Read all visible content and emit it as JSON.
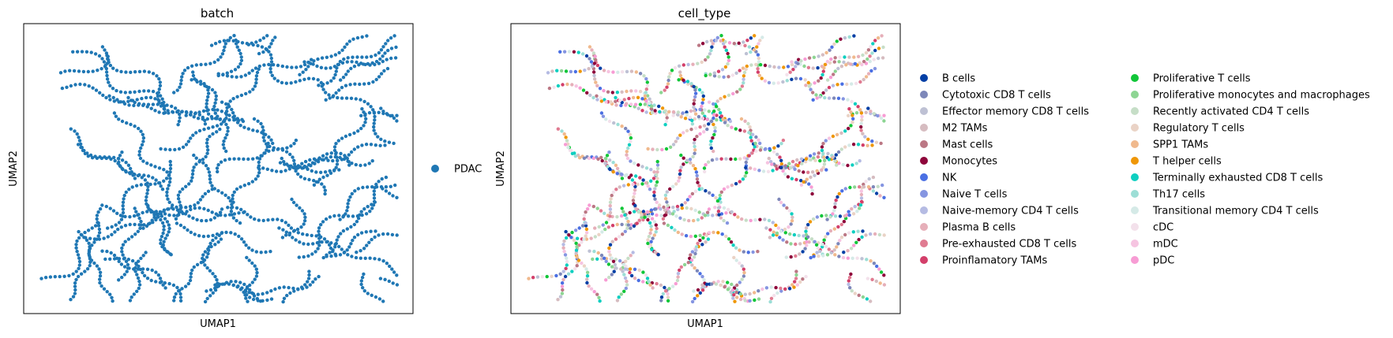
{
  "chart_data": [
    {
      "type": "scatter",
      "title": "batch",
      "xlabel": "UMAP1",
      "ylabel": "UMAP2",
      "grid": false,
      "legend_position": "right",
      "series": [
        {
          "name": "PDAC",
          "color": "#1f77b4"
        }
      ]
    },
    {
      "type": "scatter",
      "title": "cell_type",
      "xlabel": "UMAP1",
      "ylabel": "UMAP2",
      "grid": false,
      "legend_position": "right",
      "series": [
        {
          "name": "B cells",
          "color": "#023fa5"
        },
        {
          "name": "Cytotoxic CD8 T cells",
          "color": "#7d87b9"
        },
        {
          "name": "Effector memory CD8 T cells",
          "color": "#bec1d4"
        },
        {
          "name": "M2 TAMs",
          "color": "#d6bcc0"
        },
        {
          "name": "Mast cells",
          "color": "#bb7784"
        },
        {
          "name": "Monocytes",
          "color": "#8e063b"
        },
        {
          "name": "NK",
          "color": "#4a6fe3"
        },
        {
          "name": "Naive T cells",
          "color": "#8595e1"
        },
        {
          "name": "Naive-memory CD4 T cells",
          "color": "#b5bbe3"
        },
        {
          "name": "Plasma B cells",
          "color": "#e6afb9"
        },
        {
          "name": "Pre-exhausted CD8 T cells",
          "color": "#e07b91"
        },
        {
          "name": "Proinflamatory TAMs",
          "color": "#d33f6a"
        },
        {
          "name": "Proliferative T cells",
          "color": "#11c638"
        },
        {
          "name": "Proliferative monocytes and macrophages",
          "color": "#8dd593"
        },
        {
          "name": "Recently activated CD4 T cells",
          "color": "#c6dec7"
        },
        {
          "name": "Regulatory T cells",
          "color": "#ead3c6"
        },
        {
          "name": "SPP1 TAMs",
          "color": "#f0b98d"
        },
        {
          "name": "T helper cells",
          "color": "#ef9708"
        },
        {
          "name": "Terminally exhausted CD8 T cells",
          "color": "#0fcfc0"
        },
        {
          "name": "Th17 cells",
          "color": "#9cded6"
        },
        {
          "name": "Transitional memory CD4 T cells",
          "color": "#d5eae7"
        },
        {
          "name": "cDC",
          "color": "#f3e1eb"
        },
        {
          "name": "mDC",
          "color": "#f6c4e1"
        },
        {
          "name": "pDC",
          "color": "#f79cd4"
        }
      ]
    }
  ]
}
